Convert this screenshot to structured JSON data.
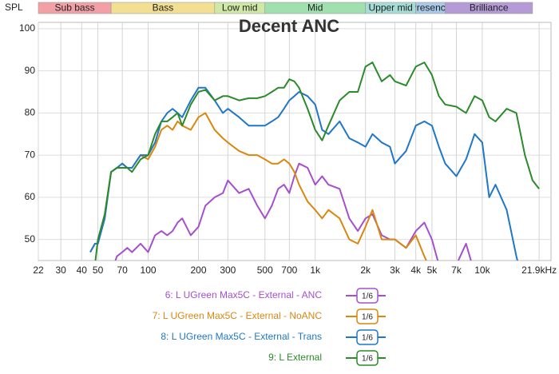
{
  "chart_data": {
    "type": "line",
    "title": "Decent ANC",
    "y_axis_label": "SPL",
    "log_x": true,
    "grid": true,
    "xlim": [
      22,
      25800
    ],
    "ylim": [
      45,
      101.5
    ],
    "xticks": [
      22,
      30,
      40,
      50,
      70,
      100,
      200,
      300,
      500,
      700,
      {
        "value": 1000,
        "label": "1k"
      },
      {
        "value": 2000,
        "label": "2k"
      },
      {
        "value": 3000,
        "label": "3k"
      },
      {
        "value": 4000,
        "label": "4k"
      },
      {
        "value": 5000,
        "label": "5k"
      },
      {
        "value": 7000,
        "label": "7k"
      },
      {
        "value": 10000,
        "label": "10k"
      },
      {
        "value": 21900,
        "label": "21.9kHz"
      }
    ],
    "yticks": [
      50,
      60,
      70,
      80,
      90,
      100
    ],
    "bands": [
      {
        "name": "Sub bass",
        "start": 20,
        "end": 60,
        "color": "#f2a0a6"
      },
      {
        "name": "Bass",
        "start": 60,
        "end": 250,
        "color": "#f3df92"
      },
      {
        "name": "Low mid",
        "start": 250,
        "end": 500,
        "color": "#cfe8a6"
      },
      {
        "name": "Mid",
        "start": 500,
        "end": 2000,
        "color": "#9fe0ae"
      },
      {
        "name": "Upper mid",
        "start": 2000,
        "end": 4000,
        "color": "#a6dcd6"
      },
      {
        "name": "Presence",
        "start": 4000,
        "end": 6000,
        "color": "#a8c9e8"
      },
      {
        "name": "Brilliance",
        "start": 6000,
        "end": 20000,
        "color": "#b49bd6"
      }
    ],
    "smoothing": "1/6",
    "x": [
      45,
      48,
      50,
      55,
      60,
      65,
      70,
      75,
      80,
      90,
      100,
      110,
      120,
      130,
      140,
      150,
      160,
      180,
      200,
      220,
      250,
      280,
      300,
      350,
      400,
      450,
      500,
      550,
      600,
      650,
      700,
      750,
      800,
      900,
      1000,
      1100,
      1200,
      1400,
      1600,
      1800,
      2000,
      2200,
      2500,
      2800,
      3000,
      3500,
      4000,
      4500,
      5000,
      5500,
      6000,
      7000,
      8000,
      9000,
      10000,
      11000,
      12000,
      14000,
      16000,
      18000,
      20000,
      21900
    ],
    "series": [
      {
        "name": "6: L UGreen Max5C - External - ANC",
        "color": "#a54fcf",
        "values": [
          null,
          null,
          null,
          null,
          42,
          46,
          47,
          48,
          47,
          49,
          47,
          51,
          52,
          51,
          52,
          54,
          55,
          51,
          53,
          58,
          60,
          61,
          64,
          61,
          62,
          58,
          55,
          58,
          62,
          63,
          61,
          65,
          68,
          67,
          63,
          65,
          63,
          62,
          55,
          52,
          55,
          56,
          51,
          50,
          50,
          48,
          52,
          54,
          50,
          44,
          40,
          44,
          49,
          42,
          38,
          null,
          null,
          null,
          null,
          null,
          null,
          null
        ]
      },
      {
        "name": "7: L UGreen Max5C - External - NoANC",
        "color": "#d9870f",
        "values": [
          47,
          49,
          49,
          56,
          66,
          67,
          68,
          67,
          67,
          70,
          69,
          72,
          76,
          77,
          76,
          78,
          77,
          76,
          79,
          80,
          76,
          74,
          73,
          71,
          70,
          70,
          69,
          68,
          68,
          69,
          68,
          66,
          63,
          59,
          57,
          55,
          57,
          55,
          50,
          49,
          53,
          57,
          50,
          50,
          50,
          48,
          51,
          46,
          42,
          38,
          null,
          null,
          null,
          null,
          null,
          null,
          null,
          null,
          null,
          null,
          null,
          null
        ]
      },
      {
        "name": "8: L UGreen Max5C - External - Trans",
        "color": "#1f77c8",
        "values": [
          47,
          49,
          49,
          55,
          66,
          67,
          68,
          67,
          67,
          70,
          70,
          73,
          78,
          80,
          81,
          80,
          79,
          83,
          86,
          86,
          83,
          80,
          81,
          79,
          77,
          77,
          77,
          78,
          79,
          81,
          83,
          84,
          85,
          84,
          82,
          76,
          75,
          78,
          74,
          73,
          72,
          75,
          73,
          72,
          68,
          71,
          77,
          78,
          77,
          72,
          68,
          65,
          69,
          75,
          73,
          60,
          63,
          57,
          46,
          38,
          null,
          null
        ]
      },
      {
        "name": "9: L External",
        "color": "#2b8a2b",
        "values": [
          40,
          44,
          50,
          56,
          66,
          67,
          67,
          67,
          66,
          69,
          70,
          75,
          78,
          78,
          79,
          80,
          77,
          82,
          85,
          85.5,
          83,
          84,
          84,
          83,
          83.5,
          83.5,
          84,
          85,
          86,
          86,
          88,
          87.5,
          86,
          81,
          76,
          73.5,
          77,
          83,
          85,
          85,
          91,
          92,
          87.5,
          89,
          87.5,
          86.5,
          91,
          92,
          89,
          84,
          82,
          81.5,
          80,
          84,
          83,
          79,
          78,
          81,
          80,
          70,
          64,
          62
        ]
      }
    ]
  }
}
